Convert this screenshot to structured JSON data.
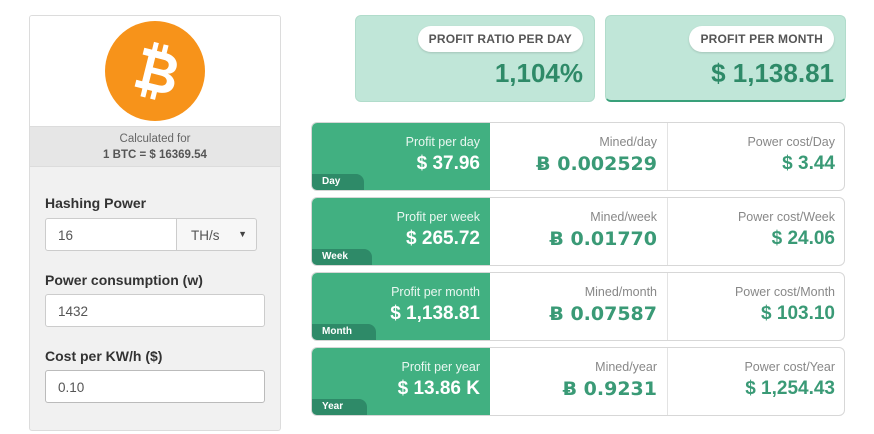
{
  "calc": {
    "label": "Calculated for",
    "rate": "1 BTC = $ 16369.54"
  },
  "form": {
    "hashing_label": "Hashing Power",
    "hashing_value": "16",
    "hashing_unit": "TH/s",
    "power_label": "Power consumption (w)",
    "power_value": "1432",
    "cost_label": "Cost per KW/h ($)",
    "cost_value": "0.10"
  },
  "summary": {
    "ratio_label": "PROFIT RATIO PER DAY",
    "ratio_value": "1,104%",
    "month_label": "PROFIT PER MONTH",
    "month_value": "$ 1,138.81"
  },
  "rows": [
    {
      "tag": "Day",
      "profit_label": "Profit per day",
      "profit_value": "$ 37.96",
      "mined_label": "Mined/day",
      "mined_value": "Ƀ 0.002529",
      "power_label": "Power cost/Day",
      "power_value": "$ 3.44"
    },
    {
      "tag": "Week",
      "profit_label": "Profit per week",
      "profit_value": "$ 265.72",
      "mined_label": "Mined/week",
      "mined_value": "Ƀ 0.01770",
      "power_label": "Power cost/Week",
      "power_value": "$ 24.06"
    },
    {
      "tag": "Month",
      "profit_label": "Profit per month",
      "profit_value": "$ 1,138.81",
      "mined_label": "Mined/month",
      "mined_value": "Ƀ 0.07587",
      "power_label": "Power cost/Month",
      "power_value": "$ 103.10"
    },
    {
      "tag": "Year",
      "profit_label": "Profit per year",
      "profit_value": "$ 13.86 K",
      "mined_label": "Mined/year",
      "mined_value": "Ƀ 0.9231",
      "power_label": "Power cost/Year",
      "power_value": "$ 1,254.43"
    }
  ],
  "icons": {
    "logo": "bitcoin-logo-icon",
    "select_caret": "caret-down-icon"
  },
  "colors": {
    "accent": "#41b081",
    "accent_dark": "#2e8a68",
    "summary_bg": "#c0e6d8",
    "bitcoin": "#f7931a"
  }
}
